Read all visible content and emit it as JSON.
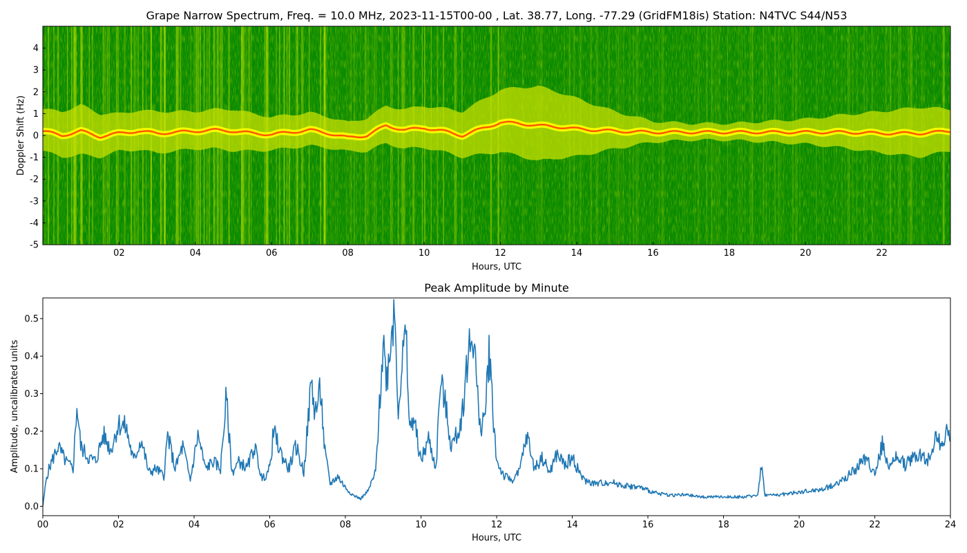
{
  "chart_data": [
    {
      "type": "heatmap",
      "title": "Grape Narrow Spectrum, Freq. = 10.0 MHz, 2023-11-15T00-00 , Lat.  38.77, Long. -77.29 (GridFM18is) Station: N4TVC S44/N53",
      "xlabel": "Hours, UTC",
      "ylabel": "Doppler Shift (Hz)",
      "xlim": [
        0,
        23.8
      ],
      "ylim": [
        -5,
        5
      ],
      "x_ticks": [
        "02",
        "04",
        "06",
        "08",
        "10",
        "12",
        "14",
        "16",
        "18",
        "20",
        "22"
      ],
      "x_tick_values": [
        2,
        4,
        6,
        8,
        10,
        12,
        14,
        16,
        18,
        20,
        22
      ],
      "y_ticks": [
        "-5",
        "-4",
        "-3",
        "-2",
        "-1",
        "0",
        "1",
        "2",
        "3",
        "4"
      ],
      "y_tick_values": [
        -5,
        -4,
        -3,
        -2,
        -1,
        0,
        1,
        2,
        3,
        4
      ],
      "colors": {
        "background": "#0a8a00",
        "mid": "#c8e000",
        "high": "#ffff00",
        "peak": "#ff3000"
      },
      "carrier_trace": {
        "x": [
          0,
          0.5,
          1,
          1.5,
          2,
          2.5,
          3,
          3.5,
          4,
          4.5,
          5,
          5.5,
          6,
          6.5,
          7,
          7.5,
          8,
          8.5,
          9,
          9.5,
          10,
          10.5,
          11,
          11.5,
          12,
          12.5,
          13,
          13.5,
          14,
          15,
          16,
          17,
          18,
          19,
          20,
          21,
          22,
          23,
          23.8
        ],
        "y": [
          0.2,
          0.0,
          0.2,
          -0.05,
          0.1,
          0.2,
          0.1,
          0.15,
          0.2,
          0.25,
          0.2,
          0.1,
          0.05,
          0.15,
          0.25,
          0.1,
          -0.1,
          0.0,
          0.45,
          0.25,
          0.35,
          0.2,
          0.0,
          0.3,
          0.6,
          0.55,
          0.45,
          0.4,
          0.3,
          0.2,
          0.15,
          0.15,
          0.15,
          0.15,
          0.15,
          0.15,
          0.1,
          0.1,
          0.2
        ]
      },
      "spread_hz": {
        "x": [
          0,
          1,
          2,
          3,
          4,
          5,
          6,
          7,
          8,
          9,
          10,
          11,
          12,
          13,
          14,
          15,
          16,
          17,
          18,
          19,
          20,
          21,
          22,
          23,
          23.8
        ],
        "y": [
          1.0,
          1.2,
          0.9,
          1.0,
          0.9,
          1.0,
          0.8,
          0.8,
          0.7,
          0.9,
          1.0,
          1.1,
          1.5,
          1.8,
          1.4,
          0.9,
          0.5,
          0.4,
          0.4,
          0.5,
          0.6,
          0.8,
          1.0,
          1.2,
          1.0
        ]
      }
    },
    {
      "type": "line",
      "title": "Peak Amplitude by Minute",
      "xlabel": "Hours, UTC",
      "ylabel": "Amplitude, uncalibrated units",
      "xlim": [
        0,
        24
      ],
      "ylim": [
        -0.025,
        0.555
      ],
      "x_ticks": [
        "00",
        "02",
        "04",
        "06",
        "08",
        "10",
        "12",
        "14",
        "16",
        "18",
        "20",
        "22",
        "24"
      ],
      "x_tick_values": [
        0,
        2,
        4,
        6,
        8,
        10,
        12,
        14,
        16,
        18,
        20,
        22,
        24
      ],
      "y_ticks": [
        "0.0",
        "0.1",
        "0.2",
        "0.3",
        "0.4",
        "0.5"
      ],
      "y_tick_values": [
        0,
        0.1,
        0.2,
        0.3,
        0.4,
        0.5
      ],
      "line_color": "#1f77b4",
      "x": [
        0.0,
        0.1,
        0.2,
        0.4,
        0.6,
        0.8,
        0.9,
        1.0,
        1.2,
        1.4,
        1.6,
        1.8,
        2.0,
        2.2,
        2.4,
        2.6,
        2.8,
        3.0,
        3.2,
        3.3,
        3.5,
        3.7,
        3.9,
        4.1,
        4.3,
        4.5,
        4.7,
        4.85,
        5.0,
        5.2,
        5.4,
        5.6,
        5.8,
        6.0,
        6.1,
        6.3,
        6.5,
        6.7,
        6.9,
        7.1,
        7.2,
        7.35,
        7.45,
        7.6,
        7.8,
        8.0,
        8.2,
        8.4,
        8.6,
        8.8,
        8.9,
        9.0,
        9.1,
        9.2,
        9.3,
        9.4,
        9.5,
        9.6,
        9.7,
        9.8,
        10.0,
        10.2,
        10.4,
        10.5,
        10.6,
        10.8,
        11.0,
        11.1,
        11.25,
        11.4,
        11.55,
        11.7,
        11.8,
        11.9,
        12.0,
        12.2,
        12.4,
        12.6,
        12.8,
        13.0,
        13.2,
        13.4,
        13.6,
        13.8,
        14.0,
        14.3,
        14.6,
        15.0,
        15.4,
        15.8,
        16.2,
        16.6,
        17.0,
        17.4,
        17.8,
        18.2,
        18.6,
        18.9,
        19.0,
        19.1,
        19.4,
        19.8,
        20.2,
        20.6,
        21.0,
        21.4,
        21.8,
        22.0,
        22.2,
        22.4,
        22.6,
        22.8,
        23.0,
        23.2,
        23.4,
        23.6,
        23.8,
        23.9,
        24.0
      ],
      "y": [
        0.0,
        0.08,
        0.11,
        0.16,
        0.12,
        0.1,
        0.27,
        0.16,
        0.13,
        0.12,
        0.19,
        0.15,
        0.22,
        0.21,
        0.12,
        0.18,
        0.09,
        0.1,
        0.08,
        0.19,
        0.1,
        0.16,
        0.07,
        0.19,
        0.1,
        0.12,
        0.1,
        0.29,
        0.09,
        0.12,
        0.1,
        0.16,
        0.07,
        0.1,
        0.2,
        0.14,
        0.1,
        0.16,
        0.09,
        0.33,
        0.25,
        0.31,
        0.15,
        0.06,
        0.08,
        0.05,
        0.03,
        0.02,
        0.04,
        0.09,
        0.26,
        0.44,
        0.34,
        0.45,
        0.53,
        0.26,
        0.38,
        0.46,
        0.2,
        0.24,
        0.12,
        0.18,
        0.1,
        0.32,
        0.3,
        0.16,
        0.2,
        0.26,
        0.41,
        0.46,
        0.2,
        0.25,
        0.42,
        0.26,
        0.12,
        0.08,
        0.07,
        0.09,
        0.19,
        0.1,
        0.13,
        0.09,
        0.14,
        0.11,
        0.13,
        0.07,
        0.06,
        0.065,
        0.055,
        0.05,
        0.035,
        0.03,
        0.03,
        0.025,
        0.025,
        0.025,
        0.025,
        0.03,
        0.11,
        0.03,
        0.03,
        0.035,
        0.04,
        0.045,
        0.06,
        0.09,
        0.13,
        0.08,
        0.17,
        0.1,
        0.14,
        0.11,
        0.13,
        0.14,
        0.12,
        0.19,
        0.15,
        0.23,
        0.15
      ]
    }
  ]
}
